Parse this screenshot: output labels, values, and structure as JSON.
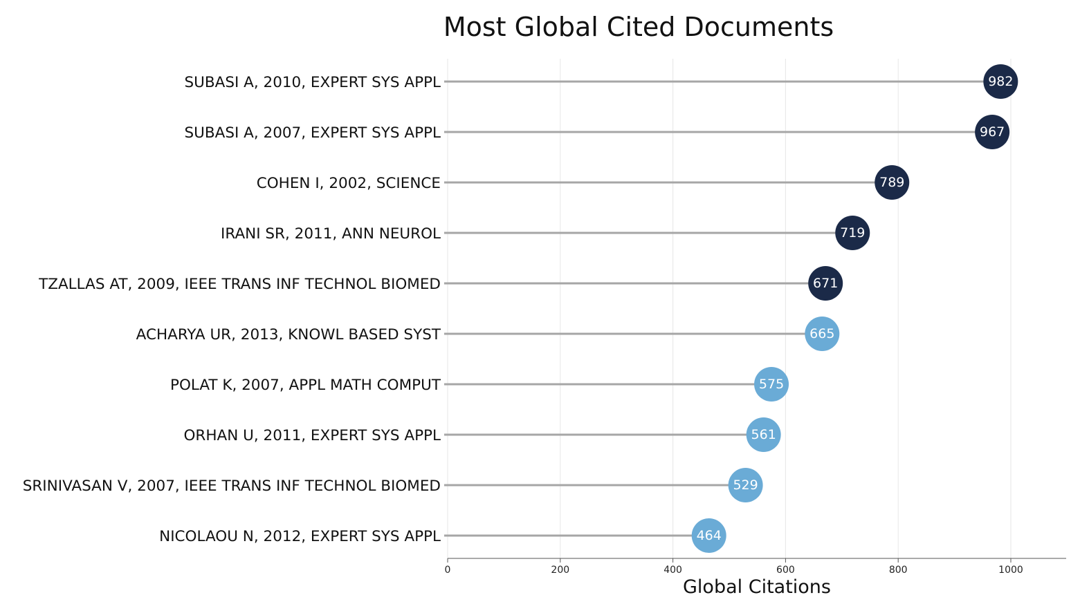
{
  "chart_data": {
    "type": "lollipop",
    "title": "Most Global Cited Documents",
    "xlabel": "Global Citations",
    "ylabel": "",
    "xlim": [
      0,
      1100
    ],
    "xticks": [
      0,
      200,
      400,
      600,
      800,
      1000
    ],
    "grid": true,
    "categories": [
      "SUBASI A, 2010, EXPERT SYS APPL",
      "SUBASI A, 2007, EXPERT SYS APPL",
      "COHEN I, 2002, SCIENCE",
      "IRANI SR, 2011, ANN NEUROL",
      "TZALLAS AT, 2009, IEEE TRANS INF TECHNOL BIOMED",
      "ACHARYA UR, 2013, KNOWL BASED SYST",
      "POLAT K, 2007, APPL MATH COMPUT",
      "ORHAN U, 2011, EXPERT SYS APPL",
      "SRINIVASAN V, 2007, IEEE TRANS INF TECHNOL BIOMED",
      "NICOLAOU N, 2012, EXPERT SYS APPL"
    ],
    "values": [
      982,
      967,
      789,
      719,
      671,
      665,
      575,
      561,
      529,
      464
    ],
    "value_labels": [
      "982",
      "967",
      "789",
      "719",
      "671",
      "665",
      "575",
      "561",
      "529",
      "464"
    ],
    "colors": {
      "top_group": "#1b2a48",
      "bottom_group": "#6aabd6",
      "stem": "#a6a6a6",
      "grid": "#e6e6e6"
    },
    "point_groups": [
      "top",
      "top",
      "top",
      "top",
      "top",
      "bottom",
      "bottom",
      "bottom",
      "bottom",
      "bottom"
    ]
  }
}
